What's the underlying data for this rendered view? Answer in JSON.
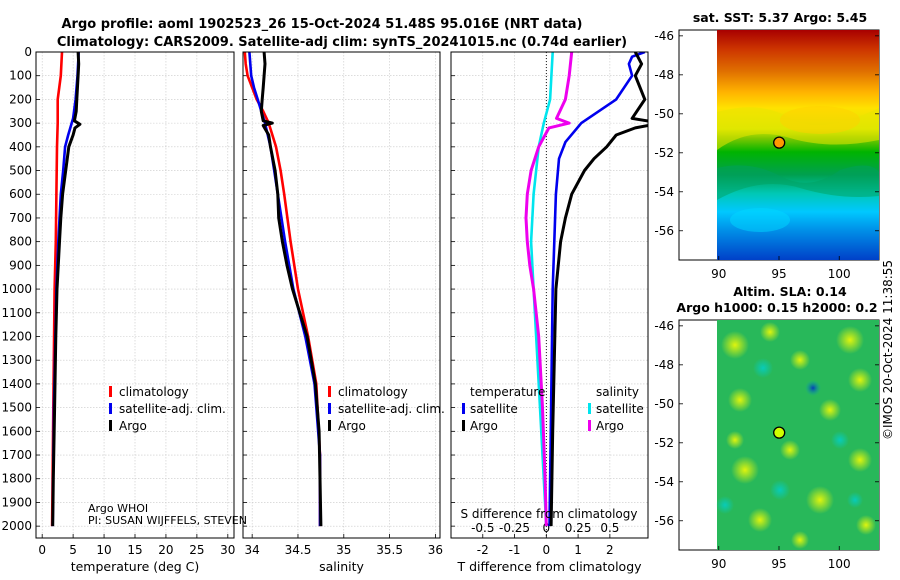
{
  "header": {
    "title_line1": "Argo profile: aoml 1902523_26 15-Oct-2024 51.48S 95.016E (NRT data)",
    "title_line2": "Climatology: CARS2009. Satellite-adj clim: synTS_20241015.nc (0.74d earlier)"
  },
  "credits": {
    "line1": "Argo WHOI",
    "line2": "PI: SUSAN WIJFFELS, STEVEN"
  },
  "maps": {
    "sst_title": "sat. SST: 5.37 Argo: 5.45",
    "sla_title_line1": "Altim. SLA: 0.14",
    "sla_title_line2": "Argo h1000: 0.15 h2000: 0.2",
    "timestamp": "©IMOS 20-Oct-2024 11:38:55",
    "lat_ticks": [
      "-46",
      "-48",
      "-50",
      "-52",
      "-54",
      "-56"
    ],
    "lon_ticks": [
      "90",
      "95",
      "100"
    ],
    "float_lat": -51.48,
    "float_lon": 95.016
  },
  "colors": {
    "climatology": "#ff0000",
    "satellite": "#0000ee",
    "argo": "#000000",
    "salinity_satellite": "#00e5ee",
    "salinity_argo": "#ee00ee"
  },
  "chart_data": [
    {
      "type": "line",
      "xlabel": "temperature (deg C)",
      "ylabel": "",
      "xlim": [
        -1,
        31
      ],
      "ylim": [
        2050,
        0
      ],
      "xticks": [
        0,
        5,
        10,
        15,
        20,
        25,
        30
      ],
      "yticks": [
        0,
        100,
        200,
        300,
        400,
        500,
        600,
        700,
        800,
        900,
        1000,
        1100,
        1200,
        1300,
        1400,
        1500,
        1600,
        1700,
        1800,
        1900,
        2000
      ],
      "legend": [
        "climatology",
        "satellite-adj. clim.",
        "Argo"
      ],
      "legend_position": "lower-right",
      "series": [
        {
          "name": "climatology",
          "depth": [
            0,
            100,
            200,
            300,
            400,
            600,
            800,
            1000,
            1500,
            2000
          ],
          "values": [
            3.2,
            3.0,
            2.5,
            2.5,
            2.4,
            2.3,
            2.2,
            2.0,
            1.8,
            1.6
          ]
        },
        {
          "name": "satellite-adj. clim.",
          "depth": [
            0,
            100,
            200,
            280,
            350,
            400,
            500,
            600,
            800,
            1000,
            1500,
            2000
          ],
          "values": [
            5.9,
            5.7,
            5.4,
            5.0,
            4.2,
            3.7,
            3.4,
            3.0,
            2.6,
            2.3,
            1.9,
            1.7
          ]
        },
        {
          "name": "Argo",
          "depth": [
            0,
            50,
            100,
            200,
            250,
            290,
            305,
            320,
            350,
            400,
            500,
            600,
            700,
            800,
            1000,
            1200,
            1500,
            1800,
            2000
          ],
          "values": [
            5.8,
            5.9,
            5.8,
            5.6,
            5.5,
            5.2,
            6.1,
            5.3,
            5.0,
            4.3,
            3.8,
            3.3,
            3.0,
            2.8,
            2.4,
            2.2,
            2.0,
            1.8,
            1.7
          ]
        }
      ]
    },
    {
      "type": "line",
      "xlabel": "salinity",
      "ylabel": "",
      "xlim": [
        33.9,
        36.05
      ],
      "ylim": [
        2050,
        0
      ],
      "xticks": [
        34,
        34.5,
        35,
        35.5,
        36
      ],
      "xtick_labels": [
        "34",
        "34.5",
        "35",
        "35.5",
        "36"
      ],
      "legend": [
        "climatology",
        "satellite-adj. clim.",
        "Argo"
      ],
      "legend_position": "lower-right",
      "series": [
        {
          "name": "climatology",
          "depth": [
            0,
            50,
            100,
            150,
            200,
            250,
            300,
            400,
            500,
            600,
            800,
            1000,
            1200,
            1400,
            1700,
            2000
          ],
          "values": [
            33.92,
            33.93,
            33.95,
            34.0,
            34.05,
            34.12,
            34.18,
            34.26,
            34.31,
            34.35,
            34.42,
            34.5,
            34.61,
            34.7,
            34.74,
            34.74
          ]
        },
        {
          "name": "satellite-adj. clim.",
          "depth": [
            0,
            50,
            100,
            150,
            200,
            250,
            300,
            400,
            500,
            600,
            800,
            1000,
            1200,
            1400,
            1700,
            2000
          ],
          "values": [
            33.97,
            33.98,
            33.99,
            34.02,
            34.06,
            34.1,
            34.14,
            34.2,
            34.24,
            34.28,
            34.36,
            34.45,
            34.58,
            34.68,
            34.74,
            34.74
          ]
        },
        {
          "name": "Argo",
          "depth": [
            0,
            50,
            100,
            150,
            200,
            250,
            290,
            300,
            310,
            350,
            400,
            500,
            600,
            700,
            800,
            900,
            1000,
            1100,
            1200,
            1400,
            1600,
            1800,
            2000
          ],
          "values": [
            34.13,
            34.14,
            34.13,
            34.12,
            34.11,
            34.1,
            34.12,
            34.22,
            34.12,
            34.18,
            34.2,
            34.25,
            34.28,
            34.29,
            34.33,
            34.38,
            34.44,
            34.52,
            34.6,
            34.69,
            34.73,
            34.74,
            34.75
          ]
        }
      ]
    },
    {
      "type": "line",
      "xlabel": "T difference from climatology",
      "secondary_xlabel": "S difference from climatology",
      "ylabel": "",
      "xlim": [
        -3,
        3.2
      ],
      "ylim": [
        2050,
        0
      ],
      "xticks": [
        -2,
        -1,
        0,
        1,
        2
      ],
      "xtick_labels": [
        "-2",
        "-1",
        "0",
        "1",
        "2"
      ],
      "secondary_xticks": [
        -0.5,
        -0.25,
        0,
        0.25,
        0.5
      ],
      "secondary_xtick_labels": [
        "-0.5",
        "-0.25",
        "0",
        "0.25",
        "0.5"
      ],
      "zero_line": "dotted",
      "legend": [
        "temperature",
        "satellite",
        "Argo",
        "salinity",
        "satellite",
        "Argo"
      ],
      "legend_position": "lower-center",
      "series": [
        {
          "name": "temperature satellite",
          "depth": [
            0,
            20,
            50,
            100,
            200,
            300,
            380,
            450,
            600,
            800,
            1000,
            1500,
            2000
          ],
          "values": [
            3.1,
            2.7,
            2.6,
            2.7,
            2.2,
            1.1,
            0.6,
            0.4,
            0.3,
            0.25,
            0.2,
            0.15,
            0.1
          ]
        },
        {
          "name": "temperature Argo",
          "depth": [
            0,
            50,
            100,
            200,
            280,
            300,
            320,
            350,
            400,
            450,
            500,
            600,
            700,
            800,
            1000,
            1300,
            1600,
            2000
          ],
          "values": [
            2.8,
            3.0,
            2.8,
            3.1,
            2.7,
            3.6,
            2.8,
            2.2,
            1.9,
            1.5,
            1.2,
            0.8,
            0.6,
            0.45,
            0.3,
            0.25,
            0.2,
            0.15
          ]
        },
        {
          "name": "salinity satellite",
          "depth": [
            0,
            100,
            200,
            300,
            400,
            600,
            800,
            1000,
            1500,
            2000
          ],
          "values": [
            0.05,
            0.04,
            0.03,
            -0.02,
            -0.06,
            -0.1,
            -0.12,
            -0.1,
            -0.05,
            0.0
          ]
        },
        {
          "name": "salinity Argo",
          "depth": [
            0,
            100,
            200,
            280,
            300,
            320,
            400,
            500,
            600,
            700,
            800,
            900,
            1000,
            1200,
            1500,
            1800,
            2000
          ],
          "values": [
            0.2,
            0.18,
            0.15,
            0.08,
            0.18,
            0.02,
            -0.06,
            -0.12,
            -0.15,
            -0.16,
            -0.15,
            -0.13,
            -0.1,
            -0.06,
            -0.03,
            -0.01,
            0.0
          ]
        }
      ]
    }
  ]
}
